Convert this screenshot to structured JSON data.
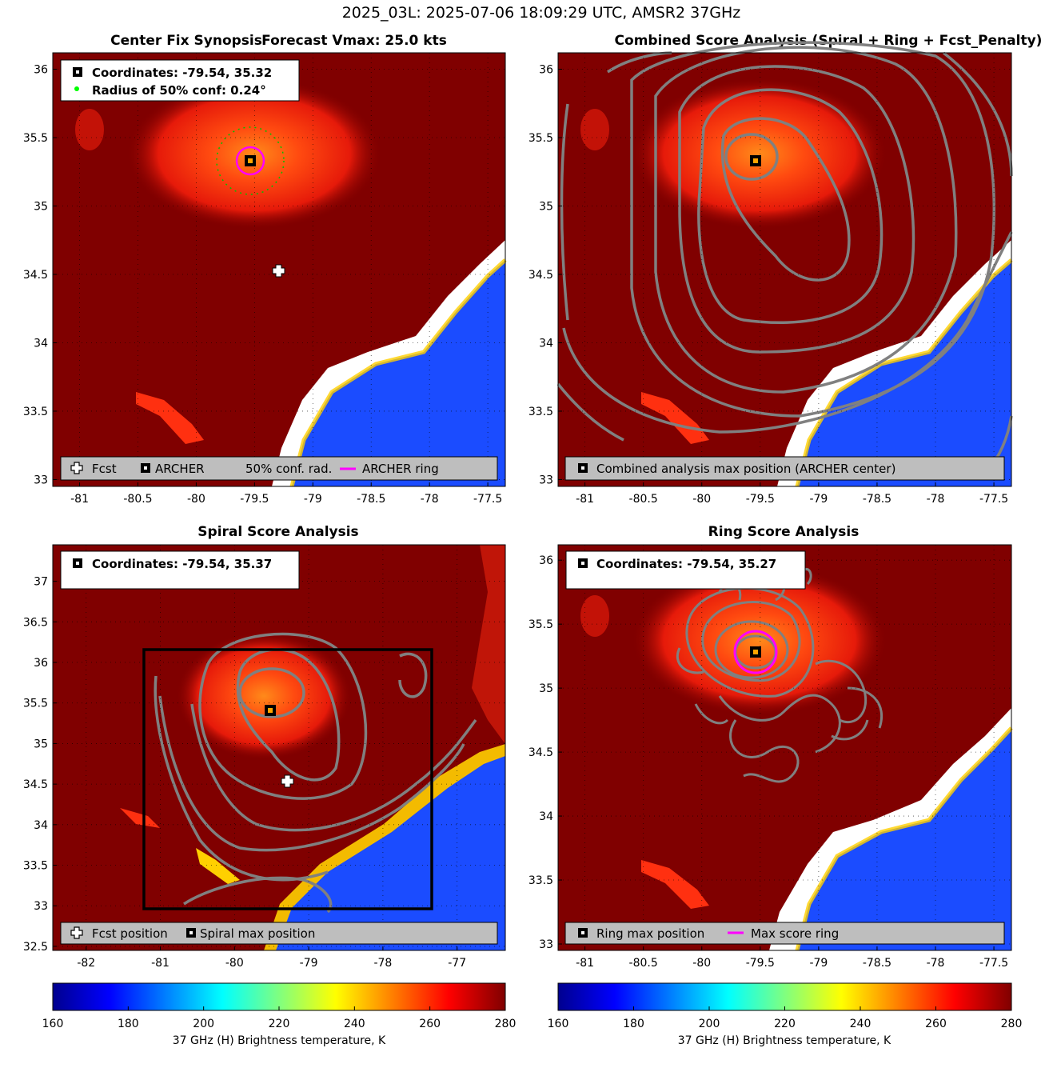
{
  "suptitle": "2025_03L: 2025-07-06 18:09:29 UTC, AMSR2 37GHz",
  "colors": {
    "land": "#800000",
    "contour": "#808080",
    "ring": "#ff00ff",
    "conf": "#00c000",
    "legend_bg": "#bebebe"
  },
  "panels": [
    {
      "id": "synopsis",
      "title_left": "Center Fix Synopsis",
      "title_right": "Forecast Vmax: 25.0 kts",
      "info": [
        "Coordinates: -79.54, 35.32",
        "Radius of 50% conf: 0.24°"
      ],
      "legend": [
        "Fcst",
        "ARCHER",
        "50% conf. rad.",
        "ARCHER ring"
      ],
      "xticks": [
        "-81",
        "-80.5",
        "-80",
        "-79.5",
        "-79",
        "-78.5",
        "-78",
        "-77.5"
      ],
      "yticks": [
        "33",
        "33.5",
        "34",
        "34.5",
        "35",
        "35.5",
        "36"
      ],
      "xlim": [
        -81.23,
        -77.35
      ],
      "ylim": [
        32.95,
        36.12
      ],
      "center": [
        -79.54,
        35.32
      ],
      "fcst": [
        -79.3,
        34.5
      ],
      "conf_radius_deg": 0.24
    },
    {
      "id": "combined",
      "title": "Combined Score Analysis (Spiral + Ring + Fcst_Penalty)",
      "legend": [
        "Combined analysis max position (ARCHER center)"
      ],
      "xticks": [
        "-81",
        "-80.5",
        "-80",
        "-79.5",
        "-79",
        "-78.5",
        "-78",
        "-77.5"
      ],
      "yticks": [
        "33",
        "33.5",
        "34",
        "34.5",
        "35",
        "35.5",
        "36"
      ],
      "xlim": [
        -81.23,
        -77.35
      ],
      "ylim": [
        32.95,
        36.12
      ],
      "center": [
        -79.54,
        35.32
      ]
    },
    {
      "id": "spiral",
      "title": "Spiral Score Analysis",
      "info": [
        "Coordinates: -79.54, 35.37"
      ],
      "legend": [
        "Fcst position",
        "Spiral max position"
      ],
      "xticks": [
        "-82",
        "-81",
        "-80",
        "-79",
        "-78",
        "-77"
      ],
      "yticks": [
        "32.5",
        "33",
        "33.5",
        "34",
        "34.5",
        "35",
        "35.5",
        "36",
        "36.5",
        "37"
      ],
      "xlim": [
        -82.45,
        -76.35
      ],
      "ylim": [
        32.45,
        37.45
      ],
      "center": [
        -79.54,
        35.37
      ],
      "fcst": [
        -79.3,
        34.5
      ]
    },
    {
      "id": "ring",
      "title": "Ring Score Analysis",
      "info": [
        "Coordinates: -79.54, 35.27"
      ],
      "legend": [
        "Ring max position",
        "Max score ring"
      ],
      "xticks": [
        "-81",
        "-80.5",
        "-80",
        "-79.5",
        "-79",
        "-78.5",
        "-78",
        "-77.5"
      ],
      "yticks": [
        "33",
        "33.5",
        "34",
        "34.5",
        "35",
        "35.5",
        "36"
      ],
      "xlim": [
        -81.23,
        -77.35
      ],
      "ylim": [
        32.95,
        36.12
      ],
      "center": [
        -79.54,
        35.27
      ]
    }
  ],
  "colorbar": {
    "label": "37 GHz (H) Brightness temperature, K",
    "ticks": [
      "160",
      "180",
      "200",
      "220",
      "240",
      "260",
      "280"
    ],
    "range": [
      160,
      280
    ]
  }
}
